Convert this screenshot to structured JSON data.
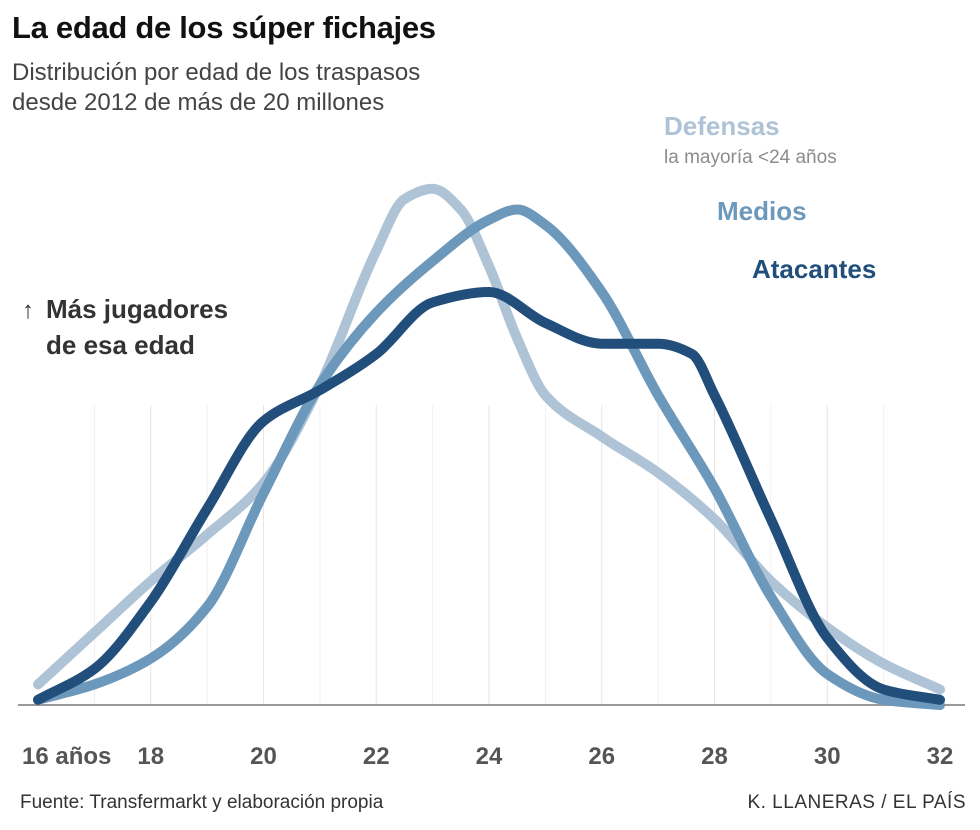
{
  "header": {
    "title": "La edad de los súper fichajes",
    "subtitle_line1": "Distribución por edad de los traspasos",
    "subtitle_line2": "desde 2012 de más de 20 millones"
  },
  "annotation": {
    "arrow": "↑",
    "line1": "Más jugadores",
    "line2": "de esa edad"
  },
  "legend": {
    "defensas": {
      "label": "Defensas",
      "note": "la mayoría <24 años",
      "color": "#aec3d6"
    },
    "medios": {
      "label": "Medios",
      "color": "#6c98bc"
    },
    "atacantes": {
      "label": "Atacantes",
      "color": "#224e7c"
    }
  },
  "footer": {
    "source": "Fuente: Transfermarkt y elaboración propia",
    "credit": "K. LLANERAS  /  EL PAÍS"
  },
  "chart_data": {
    "type": "line",
    "title": "La edad de los súper fichajes",
    "subtitle": "Distribución por edad de los traspasos desde 2012 de más de 20 millones",
    "xlabel": "",
    "ylabel": "Más jugadores de esa edad",
    "xlim": [
      16,
      32
    ],
    "ylim": [
      0,
      1.05
    ],
    "x_ticks": [
      {
        "value": 16,
        "label": "16 años"
      },
      {
        "value": 18,
        "label": "18"
      },
      {
        "value": 20,
        "label": "20"
      },
      {
        "value": 22,
        "label": "22"
      },
      {
        "value": 24,
        "label": "24"
      },
      {
        "value": 26,
        "label": "26"
      },
      {
        "value": 28,
        "label": "28"
      },
      {
        "value": 30,
        "label": "30"
      },
      {
        "value": 32,
        "label": "32"
      }
    ],
    "grid": "vertical",
    "series": [
      {
        "name": "Defensas",
        "color": "#aec3d6",
        "x": [
          16,
          17,
          18,
          19,
          20,
          21,
          22,
          22.5,
          23,
          23.5,
          24,
          24.5,
          25,
          26,
          27,
          28,
          29,
          30,
          31,
          32
        ],
        "y": [
          0.04,
          0.14,
          0.24,
          0.33,
          0.43,
          0.62,
          0.88,
          0.98,
          1.0,
          0.96,
          0.85,
          0.71,
          0.6,
          0.52,
          0.45,
          0.36,
          0.24,
          0.15,
          0.08,
          0.03
        ]
      },
      {
        "name": "Medios",
        "color": "#6c98bc",
        "x": [
          16,
          17,
          18,
          19,
          20,
          21,
          22,
          23,
          24,
          24.5,
          25,
          26,
          27,
          28,
          29,
          30,
          31,
          32
        ],
        "y": [
          0.01,
          0.04,
          0.09,
          0.19,
          0.41,
          0.62,
          0.76,
          0.86,
          0.94,
          0.96,
          0.93,
          0.8,
          0.6,
          0.42,
          0.21,
          0.06,
          0.01,
          0.0
        ]
      },
      {
        "name": "Atacantes",
        "color": "#224e7c",
        "x": [
          16,
          17,
          18,
          19,
          20,
          21,
          22,
          23,
          24,
          25,
          26,
          27,
          27.6,
          28,
          29,
          30,
          31,
          32
        ],
        "y": [
          0.01,
          0.07,
          0.2,
          0.38,
          0.55,
          0.61,
          0.68,
          0.78,
          0.8,
          0.74,
          0.7,
          0.7,
          0.68,
          0.6,
          0.36,
          0.13,
          0.03,
          0.01
        ]
      }
    ]
  }
}
